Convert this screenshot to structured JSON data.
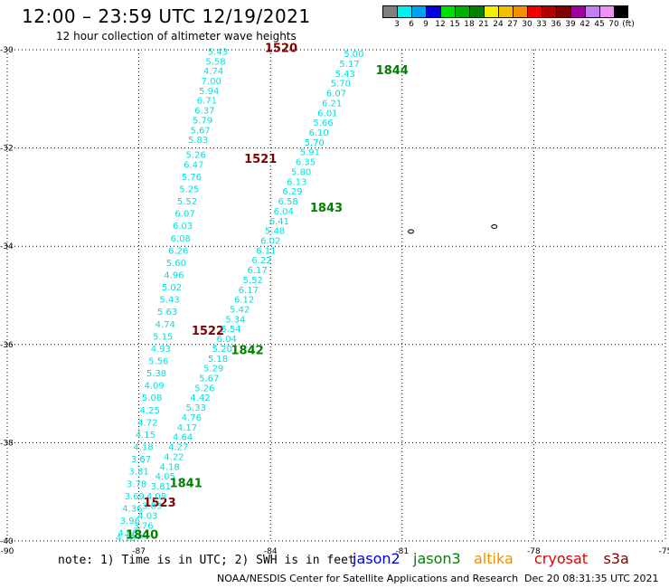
{
  "header": {
    "title": "12:00 – 23:59 UTC 12/19/2021",
    "subtitle": "12 hour collection of altimeter wave heights"
  },
  "colorbar": {
    "colors": [
      "#808080",
      "#00f0f0",
      "#00a0f0",
      "#0000e0",
      "#00e000",
      "#00b000",
      "#008000",
      "#f0f000",
      "#f0c000",
      "#f09000",
      "#f00000",
      "#b00000",
      "#800000",
      "#a000a0",
      "#c080f0",
      "#f090f0",
      "#000000"
    ],
    "labels": [
      "3",
      "6",
      "9",
      "12",
      "15",
      "18",
      "21",
      "24",
      "27",
      "30",
      "33",
      "36",
      "39",
      "42",
      "45",
      "70",
      "(ft)"
    ]
  },
  "map": {
    "lat_range": [
      -40,
      -30
    ],
    "lon_range": [
      -90,
      -75
    ],
    "lat_ticks": [
      "-30",
      "-32",
      "-34",
      "-36",
      "-38",
      "-40"
    ],
    "lon_ticks": [
      "-90",
      "-87",
      "-84",
      "-81",
      "-78",
      "-75"
    ],
    "grid": "dotted"
  },
  "tracks": [
    {
      "satellite": "cryosat",
      "color": "#00e0e0",
      "label_color": "#800000",
      "time_labels": [
        {
          "text": "1520",
          "lat": -30.05,
          "lon": -84.13
        },
        {
          "text": "1521",
          "lat": -32.3,
          "lon": -84.6
        },
        {
          "text": "1522",
          "lat": -35.8,
          "lon": -85.8
        },
        {
          "text": "1523",
          "lat": -39.3,
          "lon": -86.9
        }
      ],
      "points": [
        {
          "lat": -30.1,
          "lon": -85.2,
          "v": "5.43"
        },
        {
          "lat": -30.3,
          "lon": -85.25,
          "v": "5.58"
        },
        {
          "lat": -30.5,
          "lon": -85.3,
          "v": "4.74"
        },
        {
          "lat": -30.7,
          "lon": -85.35,
          "v": "7.00"
        },
        {
          "lat": -30.9,
          "lon": -85.4,
          "v": "5.94"
        },
        {
          "lat": -31.1,
          "lon": -85.45,
          "v": "6.71"
        },
        {
          "lat": -31.3,
          "lon": -85.5,
          "v": "6.37"
        },
        {
          "lat": -31.5,
          "lon": -85.55,
          "v": "5.79"
        },
        {
          "lat": -31.7,
          "lon": -85.6,
          "v": "5.67"
        },
        {
          "lat": -31.9,
          "lon": -85.65,
          "v": "5.83"
        },
        {
          "lat": -32.2,
          "lon": -85.7,
          "v": "5.26"
        },
        {
          "lat": -32.4,
          "lon": -85.75,
          "v": "6.47"
        },
        {
          "lat": -32.65,
          "lon": -85.8,
          "v": "5.76"
        },
        {
          "lat": -32.9,
          "lon": -85.85,
          "v": "5.25"
        },
        {
          "lat": -33.15,
          "lon": -85.9,
          "v": "5.52"
        },
        {
          "lat": -33.4,
          "lon": -85.95,
          "v": "6.07"
        },
        {
          "lat": -33.65,
          "lon": -86.0,
          "v": "6.03"
        },
        {
          "lat": -33.9,
          "lon": -86.05,
          "v": "6.08"
        },
        {
          "lat": -34.15,
          "lon": -86.1,
          "v": "6.26"
        },
        {
          "lat": -34.4,
          "lon": -86.15,
          "v": "5.60"
        },
        {
          "lat": -34.65,
          "lon": -86.2,
          "v": "4.96"
        },
        {
          "lat": -34.9,
          "lon": -86.25,
          "v": "5.02"
        },
        {
          "lat": -35.15,
          "lon": -86.3,
          "v": "5.43"
        },
        {
          "lat": -35.4,
          "lon": -86.35,
          "v": "5.63"
        },
        {
          "lat": -35.65,
          "lon": -86.4,
          "v": "4.74"
        },
        {
          "lat": -35.9,
          "lon": -86.45,
          "v": "5.15"
        },
        {
          "lat": -36.15,
          "lon": -86.5,
          "v": "4.93"
        },
        {
          "lat": -36.4,
          "lon": -86.55,
          "v": "5.56"
        },
        {
          "lat": -36.65,
          "lon": -86.6,
          "v": "5.38"
        },
        {
          "lat": -36.9,
          "lon": -86.65,
          "v": "4.09"
        },
        {
          "lat": -37.15,
          "lon": -86.7,
          "v": "5.08"
        },
        {
          "lat": -37.4,
          "lon": -86.75,
          "v": "4.25"
        },
        {
          "lat": -37.65,
          "lon": -86.8,
          "v": "4.72"
        },
        {
          "lat": -37.9,
          "lon": -86.85,
          "v": "4.15"
        },
        {
          "lat": -38.15,
          "lon": -86.9,
          "v": "4.18"
        },
        {
          "lat": -38.4,
          "lon": -86.95,
          "v": "3.67"
        },
        {
          "lat": -38.65,
          "lon": -87.0,
          "v": "3.81"
        },
        {
          "lat": -38.9,
          "lon": -87.05,
          "v": "3.78"
        },
        {
          "lat": -39.15,
          "lon": -87.1,
          "v": "3.69"
        },
        {
          "lat": -39.4,
          "lon": -87.15,
          "v": "4.36"
        },
        {
          "lat": -39.65,
          "lon": -87.2,
          "v": "3.96"
        },
        {
          "lat": -39.9,
          "lon": -87.25,
          "v": "4.68"
        },
        {
          "lat": -40.0,
          "lon": -87.3,
          "v": "4.18"
        }
      ]
    },
    {
      "satellite": "jason3",
      "color": "#00e0e0",
      "label_color": "#008000",
      "time_labels": [
        {
          "text": "1844",
          "lat": -30.5,
          "lon": -81.6
        },
        {
          "text": "1843",
          "lat": -33.3,
          "lon": -83.1
        },
        {
          "text": "1842",
          "lat": -36.2,
          "lon": -84.9
        },
        {
          "text": "1841",
          "lat": -38.9,
          "lon": -86.3
        },
        {
          "text": "1840",
          "lat": -39.95,
          "lon": -87.3
        }
      ],
      "points": [
        {
          "lat": -30.15,
          "lon": -82.1,
          "v": "5.00"
        },
        {
          "lat": -30.35,
          "lon": -82.2,
          "v": "5.17"
        },
        {
          "lat": -30.55,
          "lon": -82.3,
          "v": "5.43"
        },
        {
          "lat": -30.75,
          "lon": -82.4,
          "v": "5.70"
        },
        {
          "lat": -30.95,
          "lon": -82.5,
          "v": "6.07"
        },
        {
          "lat": -31.15,
          "lon": -82.6,
          "v": "6.21"
        },
        {
          "lat": -31.35,
          "lon": -82.7,
          "v": "6.01"
        },
        {
          "lat": -31.55,
          "lon": -82.8,
          "v": "5.66"
        },
        {
          "lat": -31.75,
          "lon": -82.9,
          "v": "6.10"
        },
        {
          "lat": -31.95,
          "lon": -83.0,
          "v": "5.70"
        },
        {
          "lat": -32.15,
          "lon": -83.1,
          "v": "5.91"
        },
        {
          "lat": -32.35,
          "lon": -83.2,
          "v": "6.35"
        },
        {
          "lat": -32.55,
          "lon": -83.3,
          "v": "5.80"
        },
        {
          "lat": -32.75,
          "lon": -83.4,
          "v": "6.13"
        },
        {
          "lat": -32.95,
          "lon": -83.5,
          "v": "6.29"
        },
        {
          "lat": -33.15,
          "lon": -83.6,
          "v": "6.58"
        },
        {
          "lat": -33.35,
          "lon": -83.7,
          "v": "6.04"
        },
        {
          "lat": -33.55,
          "lon": -83.8,
          "v": "6.41"
        },
        {
          "lat": -33.75,
          "lon": -83.9,
          "v": "5.48"
        },
        {
          "lat": -33.95,
          "lon": -84.0,
          "v": "6.02"
        },
        {
          "lat": -34.15,
          "lon": -84.1,
          "v": "6.11"
        },
        {
          "lat": -34.35,
          "lon": -84.2,
          "v": "6.22"
        },
        {
          "lat": -34.55,
          "lon": -84.3,
          "v": "6.17"
        },
        {
          "lat": -34.75,
          "lon": -84.4,
          "v": "5.52"
        },
        {
          "lat": -34.95,
          "lon": -84.5,
          "v": "6.17"
        },
        {
          "lat": -35.15,
          "lon": -84.6,
          "v": "6.12"
        },
        {
          "lat": -35.35,
          "lon": -84.7,
          "v": "5.42"
        },
        {
          "lat": -35.55,
          "lon": -84.8,
          "v": "5.34"
        },
        {
          "lat": -35.75,
          "lon": -84.9,
          "v": "5.54"
        },
        {
          "lat": -35.95,
          "lon": -85.0,
          "v": "6.04"
        },
        {
          "lat": -36.15,
          "lon": -85.1,
          "v": "5.20"
        },
        {
          "lat": -36.35,
          "lon": -85.2,
          "v": "5.18"
        },
        {
          "lat": -36.55,
          "lon": -85.3,
          "v": "5.29"
        },
        {
          "lat": -36.75,
          "lon": -85.4,
          "v": "5.67"
        },
        {
          "lat": -36.95,
          "lon": -85.5,
          "v": "5.26"
        },
        {
          "lat": -37.15,
          "lon": -85.6,
          "v": "4.42"
        },
        {
          "lat": -37.35,
          "lon": -85.7,
          "v": "5.33"
        },
        {
          "lat": -37.55,
          "lon": -85.8,
          "v": "4.76"
        },
        {
          "lat": -37.75,
          "lon": -85.9,
          "v": "4.17"
        },
        {
          "lat": -37.95,
          "lon": -86.0,
          "v": "4.64"
        },
        {
          "lat": -38.15,
          "lon": -86.1,
          "v": "4.27"
        },
        {
          "lat": -38.35,
          "lon": -86.2,
          "v": "4.22"
        },
        {
          "lat": -38.55,
          "lon": -86.3,
          "v": "4.18"
        },
        {
          "lat": -38.75,
          "lon": -86.4,
          "v": "4.05"
        },
        {
          "lat": -38.95,
          "lon": -86.5,
          "v": "3.81"
        },
        {
          "lat": -39.15,
          "lon": -86.6,
          "v": "4.08"
        },
        {
          "lat": -39.35,
          "lon": -86.7,
          "v": "3.83"
        },
        {
          "lat": -39.55,
          "lon": -86.8,
          "v": "4.03"
        },
        {
          "lat": -39.75,
          "lon": -86.9,
          "v": "3.76"
        },
        {
          "lat": -39.95,
          "lon": -87.0,
          "v": "3.63"
        }
      ]
    }
  ],
  "islands": [
    {
      "lat": -33.7,
      "lon": -80.8
    },
    {
      "lat": -33.6,
      "lon": -78.9
    }
  ],
  "footer": {
    "note": "note:  1) Time is in UTC; 2) SWH is in feet",
    "credit": "NOAA/NESDIS Center for Satellite Applications and Research",
    "timestamp": "Dec 20 08:31:35 UTC 2021",
    "legend": [
      {
        "name": "jason2",
        "color": "#0000e0"
      },
      {
        "name": "jason3",
        "color": "#008000"
      },
      {
        "name": "altika",
        "color": "#f09000"
      },
      {
        "name": "cryosat",
        "color": "#e00000"
      },
      {
        "name": "s3a",
        "color": "#800000"
      }
    ]
  }
}
